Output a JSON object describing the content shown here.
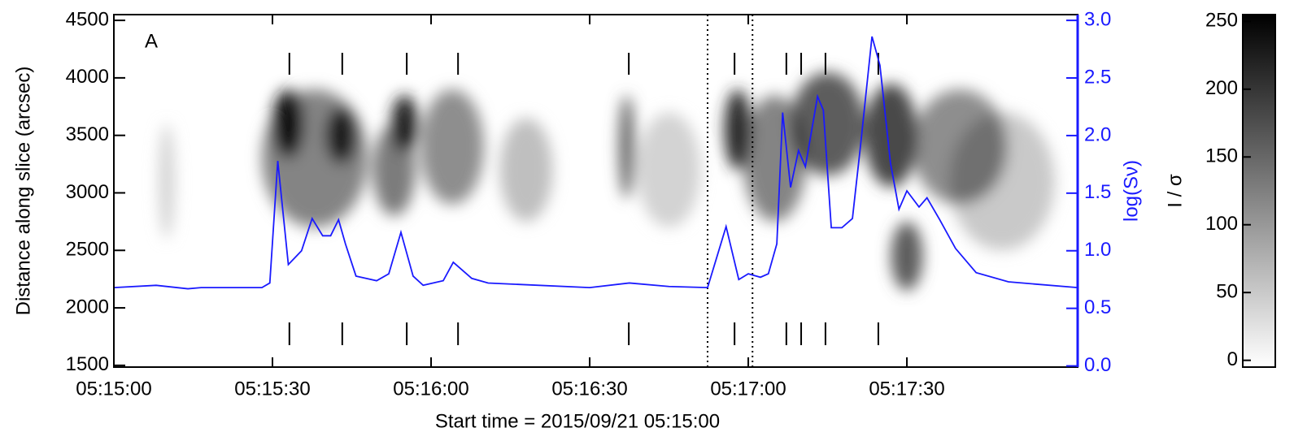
{
  "chart_data": {
    "type": "image_line",
    "annotation": "A",
    "xlabel": "Start time = 2015/09/21 05:15:00",
    "ylabel": "Distance along slice (arcsec)",
    "y2label": "log(Sν)",
    "clabel": "I / σ",
    "xlim": [
      0,
      182.3
    ],
    "xticks": [
      {
        "value": 0,
        "label": "05:15:00"
      },
      {
        "value": 30,
        "label": "05:15:30"
      },
      {
        "value": 60,
        "label": "05:16:00"
      },
      {
        "value": 90,
        "label": "05:16:30"
      },
      {
        "value": 120,
        "label": "05:17:00"
      },
      {
        "value": 150,
        "label": "05:17:30"
      }
    ],
    "ylim": [
      1485,
      4550
    ],
    "yticks": [
      1500,
      2000,
      2500,
      3000,
      3500,
      4000,
      4500
    ],
    "y2lim": [
      -0.01,
      3.05
    ],
    "y2ticks": [
      {
        "value": 0,
        "label": "0.0"
      },
      {
        "value": 0.5,
        "label": "0.5"
      },
      {
        "value": 1,
        "label": "1.0"
      },
      {
        "value": 1.5,
        "label": "1.5"
      },
      {
        "value": 2,
        "label": "2.0"
      },
      {
        "value": 2.5,
        "label": "2.5"
      },
      {
        "value": 3,
        "label": "3.0"
      }
    ],
    "image": {
      "colormap": "gray_r",
      "clim": [
        -5,
        255
      ],
      "cticks": [
        0,
        50,
        100,
        150,
        200,
        250
      ],
      "blobs": [
        {
          "t": 10,
          "d": 3100,
          "dt": 3,
          "dd": 1000,
          "v": 40
        },
        {
          "t": 38,
          "d": 3300,
          "dt": 20,
          "dd": 1200,
          "v": 120
        },
        {
          "t": 33,
          "d": 3600,
          "dt": 6,
          "dd": 600,
          "v": 230
        },
        {
          "t": 43,
          "d": 3500,
          "dt": 6,
          "dd": 500,
          "v": 200
        },
        {
          "t": 53,
          "d": 3200,
          "dt": 8,
          "dd": 800,
          "v": 130
        },
        {
          "t": 55,
          "d": 3600,
          "dt": 5,
          "dd": 500,
          "v": 220
        },
        {
          "t": 64,
          "d": 3400,
          "dt": 12,
          "dd": 1000,
          "v": 110
        },
        {
          "t": 78,
          "d": 3200,
          "dt": 10,
          "dd": 900,
          "v": 60
        },
        {
          "t": 97,
          "d": 3400,
          "dt": 3,
          "dd": 900,
          "v": 150
        },
        {
          "t": 105,
          "d": 3200,
          "dt": 12,
          "dd": 1000,
          "v": 40
        },
        {
          "t": 118,
          "d": 3550,
          "dt": 5,
          "dd": 700,
          "v": 210
        },
        {
          "t": 125,
          "d": 3300,
          "dt": 12,
          "dd": 1100,
          "v": 120
        },
        {
          "t": 135,
          "d": 3600,
          "dt": 14,
          "dd": 900,
          "v": 160
        },
        {
          "t": 147,
          "d": 3500,
          "dt": 10,
          "dd": 900,
          "v": 180
        },
        {
          "t": 150,
          "d": 2450,
          "dt": 6,
          "dd": 600,
          "v": 160
        },
        {
          "t": 160,
          "d": 3400,
          "dt": 18,
          "dd": 1000,
          "v": 110
        },
        {
          "t": 168,
          "d": 3100,
          "dt": 20,
          "dd": 1200,
          "v": 50
        }
      ]
    },
    "markers": [
      33.2,
      43.2,
      55.4,
      65.1,
      97.4,
      117.4,
      127.2,
      130.0,
      134.6,
      144.6
    ],
    "dotted": [
      112.3,
      120.8
    ],
    "series": [
      {
        "color": "#1a1aff",
        "axis": "y2",
        "x": [
          0,
          8,
          14,
          16.5,
          28,
          29.5,
          31,
          33,
          35.5,
          37.5,
          39.5,
          41,
          42.5,
          43.8,
          45.8,
          49.7,
          52,
          54.3,
          56.6,
          58.5,
          62.3,
          64.2,
          67.7,
          70.8,
          90,
          97.5,
          105,
          112.3,
          115.8,
          118.2,
          120,
          122.3,
          123.8,
          125.4,
          126.5,
          128,
          129.5,
          130.8,
          133.1,
          134.2,
          135.7,
          137.7,
          139.7,
          141.2,
          143.4,
          144.9,
          146.9,
          148.5,
          150,
          152.3,
          153.8,
          156.2,
          159.2,
          163.1,
          169.2,
          182.3
        ],
        "values": [
          0.68,
          0.7,
          0.67,
          0.68,
          0.68,
          0.72,
          1.78,
          0.88,
          1.0,
          1.28,
          1.13,
          1.13,
          1.27,
          1.06,
          0.78,
          0.74,
          0.8,
          1.16,
          0.78,
          0.7,
          0.74,
          0.9,
          0.76,
          0.72,
          0.68,
          0.72,
          0.69,
          0.68,
          1.21,
          0.75,
          0.8,
          0.77,
          0.8,
          1.06,
          2.2,
          1.55,
          1.87,
          1.73,
          2.34,
          2.22,
          1.2,
          1.2,
          1.28,
          1.9,
          2.86,
          2.61,
          1.76,
          1.36,
          1.52,
          1.38,
          1.46,
          1.27,
          1.02,
          0.81,
          0.73,
          0.68
        ]
      }
    ]
  }
}
